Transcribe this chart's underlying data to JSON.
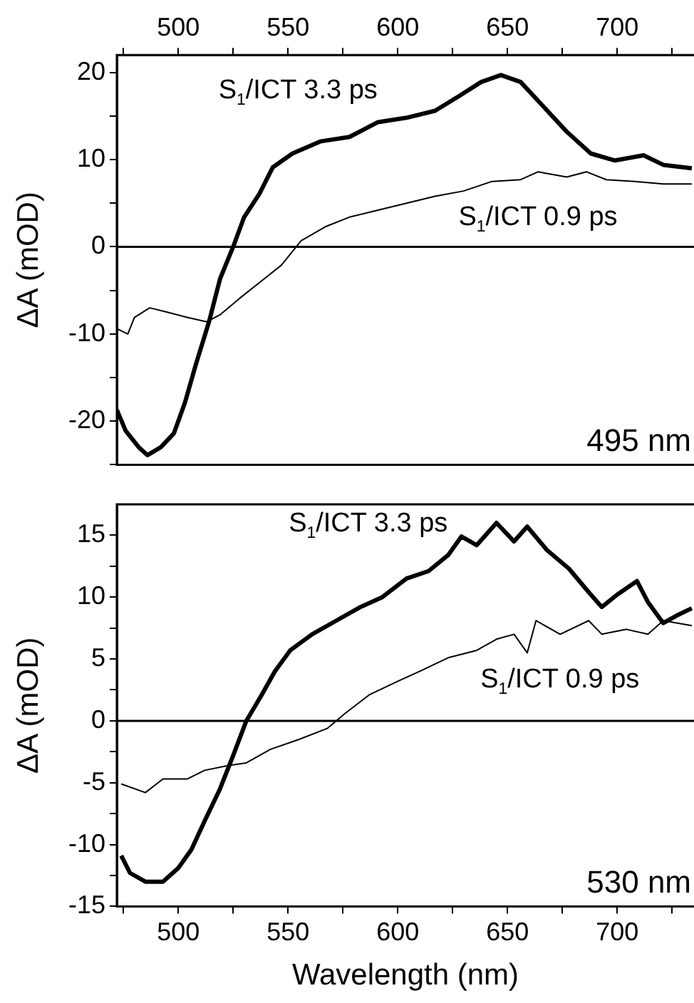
{
  "chart_data": [
    {
      "type": "line",
      "ylabel": "ΔA (mOD)",
      "annotations": [
        "495 nm"
      ],
      "xlim": [
        472,
        735
      ],
      "xticks": [
        {
          "value": 475,
          "label": null
        },
        500,
        {
          "value": 525,
          "label": null
        },
        550,
        {
          "value": 575,
          "label": null
        },
        600,
        {
          "value": 625,
          "label": null
        },
        650,
        {
          "value": 675,
          "label": null
        },
        700,
        {
          "value": 725,
          "label": null
        }
      ],
      "x2lim": [
        472,
        735
      ],
      "x2ticks": [
        {
          "value": 475,
          "label": null
        },
        500,
        {
          "value": 525,
          "label": null
        },
        550,
        {
          "value": 575,
          "label": null
        },
        600,
        {
          "value": 625,
          "label": null
        },
        650,
        {
          "value": 675,
          "label": null
        },
        700,
        {
          "value": 725,
          "label": null
        }
      ],
      "ylim": [
        -25,
        22
      ],
      "yticks": [
        {
          "value": -25,
          "label": null
        },
        -20,
        {
          "value": -15,
          "label": null
        },
        -10,
        {
          "value": -5,
          "label": null
        },
        0,
        {
          "value": 5,
          "label": null
        },
        10,
        {
          "value": 15,
          "label": null
        },
        20
      ],
      "tick_labels": "y",
      "ref_lines": [
        {
          "axis": "y",
          "value": 0,
          "color": "#000000"
        }
      ],
      "series": [
        {
          "name": "S$_{1}$/ICT 3.3 ps",
          "color": "#000000",
          "x": [
            472,
            476,
            482,
            486,
            492,
            498,
            503,
            508,
            514,
            519,
            525,
            530,
            537,
            543,
            552,
            565,
            578,
            591,
            604,
            617,
            628,
            638,
            647,
            656,
            666,
            677,
            688,
            699,
            712,
            721,
            734
          ],
          "values": [
            -18.7,
            -21.1,
            -23,
            -23.9,
            -23,
            -21.4,
            -17.9,
            -13.5,
            -8.6,
            -3.7,
            0,
            3.4,
            6.1,
            9.1,
            10.7,
            12.1,
            12.6,
            14.3,
            14.8,
            15.6,
            17.3,
            18.9,
            19.7,
            18.9,
            16.2,
            13.2,
            10.7,
            9.9,
            10.5,
            9.4,
            9
          ]
        },
        {
          "name": "S$_{1}$/ICT 0.9 ps",
          "color": "#000000",
          "x": [
            472,
            477,
            480,
            487,
            495,
            504,
            513,
            519,
            528,
            539,
            547,
            556,
            567,
            578,
            591,
            604,
            617,
            630,
            643,
            656,
            664,
            677,
            686,
            695,
            708,
            721,
            734
          ],
          "values": [
            -9.4,
            -10,
            -8.1,
            -7,
            -7.5,
            -8.1,
            -8.6,
            -7.8,
            -5.9,
            -3.7,
            -2.1,
            0.7,
            2.3,
            3.4,
            4.2,
            5,
            5.8,
            6.4,
            7.5,
            7.7,
            8.6,
            8,
            8.6,
            7.7,
            7.5,
            7.2,
            7.2
          ]
        }
      ]
    },
    {
      "type": "line",
      "xlabel": "Wavelength (nm)",
      "ylabel": "ΔA (mOD)",
      "annotations": [
        "530 nm"
      ],
      "xlim": [
        472,
        735
      ],
      "xticks": [
        {
          "value": 475,
          "label": null
        },
        500,
        {
          "value": 525,
          "label": null
        },
        550,
        {
          "value": 575,
          "label": null
        },
        600,
        {
          "value": 625,
          "label": null
        },
        650,
        {
          "value": 675,
          "label": null
        },
        700,
        {
          "value": 725,
          "label": null
        }
      ],
      "ylim": [
        -15,
        17.5
      ],
      "yticks": [
        -15,
        {
          "value": -12.5,
          "label": null
        },
        -10,
        {
          "value": -7.5,
          "label": null
        },
        -5,
        {
          "value": -2.5,
          "label": null
        },
        0,
        {
          "value": 2.5,
          "label": null
        },
        5,
        {
          "value": 7.5,
          "label": null
        },
        10,
        {
          "value": 12.5,
          "label": null
        },
        15
      ],
      "ref_lines": [
        {
          "axis": "y",
          "value": 0,
          "color": "#000000"
        }
      ],
      "series": [
        {
          "name": "S$_{1}$/ICT 3.3 ps",
          "color": "#000000",
          "x": [
            474,
            478,
            485,
            493,
            500,
            506,
            512,
            519,
            525,
            531,
            538,
            544,
            551,
            561,
            572,
            583,
            593,
            604,
            614,
            623,
            629,
            636,
            645,
            653,
            659,
            668,
            678,
            687,
            693,
            700,
            709,
            714,
            721,
            727,
            734
          ],
          "values": [
            -10.9,
            -12.3,
            -13,
            -13,
            -11.9,
            -10.4,
            -8.1,
            -5.5,
            -2.8,
            0,
            2.1,
            4,
            5.7,
            7,
            8.1,
            9.2,
            10,
            11.5,
            12.1,
            13.4,
            14.9,
            14.2,
            16,
            14.5,
            15.7,
            13.8,
            12.3,
            10.4,
            9.2,
            10.2,
            11.3,
            9.6,
            7.9,
            8.5,
            9.1
          ]
        },
        {
          "name": "S$_{1}$/ICT 0.9 ps",
          "color": "#000000",
          "x": [
            474,
            485,
            493,
            504,
            512,
            523,
            531,
            542,
            555,
            568,
            576,
            587,
            600,
            610,
            623,
            636,
            645,
            653,
            659,
            663,
            674,
            687,
            693,
            704,
            714,
            721,
            734
          ],
          "values": [
            -5.1,
            -5.8,
            -4.7,
            -4.7,
            -4,
            -3.6,
            -3.4,
            -2.3,
            -1.5,
            -0.6,
            0.6,
            2.1,
            3.2,
            4,
            5.1,
            5.7,
            6.6,
            7,
            5.5,
            8.1,
            7,
            8.1,
            7,
            7.4,
            7,
            8.1,
            7.7
          ]
        }
      ]
    }
  ]
}
